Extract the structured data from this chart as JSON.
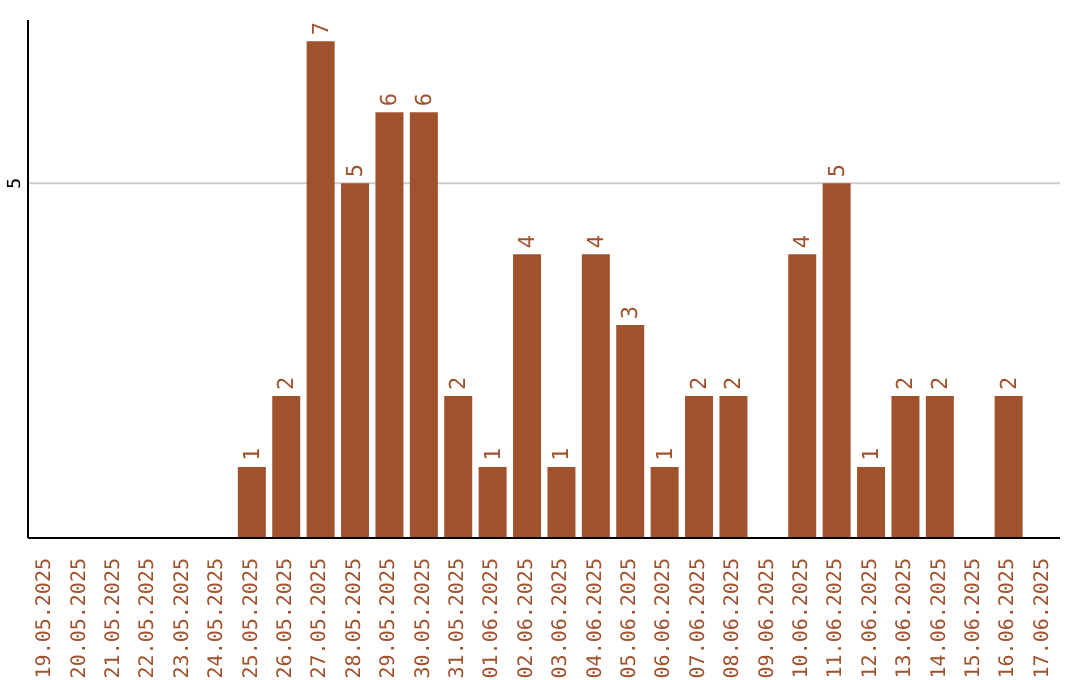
{
  "chart_data": {
    "type": "bar",
    "categories": [
      "19.05.2025",
      "20.05.2025",
      "21.05.2025",
      "22.05.2025",
      "23.05.2025",
      "24.05.2025",
      "25.05.2025",
      "26.05.2025",
      "27.05.2025",
      "28.05.2025",
      "29.05.2025",
      "30.05.2025",
      "31.05.2025",
      "01.06.2025",
      "02.06.2025",
      "03.06.2025",
      "04.06.2025",
      "05.06.2025",
      "06.06.2025",
      "07.06.2025",
      "08.06.2025",
      "09.06.2025",
      "10.06.2025",
      "11.06.2025",
      "12.06.2025",
      "13.06.2025",
      "14.06.2025",
      "15.06.2025",
      "16.06.2025",
      "17.06.2025"
    ],
    "values": [
      0,
      0,
      0,
      0,
      0,
      0,
      1,
      2,
      7,
      5,
      6,
      6,
      2,
      1,
      4,
      1,
      4,
      3,
      1,
      2,
      2,
      0,
      4,
      5,
      1,
      2,
      2,
      0,
      2,
      0
    ],
    "value_labels": [
      null,
      null,
      null,
      null,
      null,
      null,
      "1",
      "2",
      "7",
      "5",
      "6",
      "6",
      "2",
      "1",
      "4",
      "1",
      "4",
      "3",
      "1",
      "2",
      "2",
      null,
      "4",
      "5",
      "1",
      "2",
      "2",
      null,
      "2",
      null
    ],
    "color": "#a0522d",
    "ylim": [
      0,
      7.3
    ],
    "yticks": [
      5
    ],
    "grid": "y"
  }
}
